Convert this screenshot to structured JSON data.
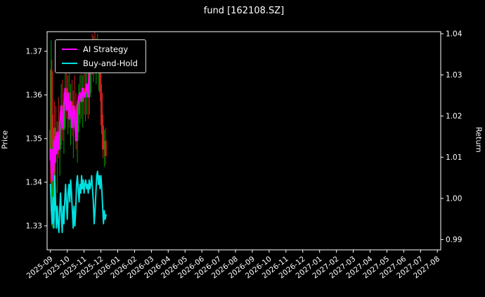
{
  "title": "fund [162108.SZ]",
  "axes": {
    "left_label": "Price",
    "right_label": "Return"
  },
  "legend": [
    {
      "label": "AI Strategy",
      "color": "#ff00ff"
    },
    {
      "label": "Buy-and-Hold",
      "color": "#00e0e0"
    }
  ],
  "colors": {
    "background": "#000000",
    "foreground": "#ffffff",
    "candle_up": "#00a000",
    "candle_down": "#cc1f1f"
  },
  "chart_data": {
    "type": "line",
    "subtype": "candlestick-with-overlay-lines",
    "title": "fund [162108.SZ]",
    "xlabel": "",
    "ylabel_left": "Price",
    "ylabel_right": "Return",
    "grid": false,
    "legend_position": "upper-left",
    "x_ticks": [
      "2025-09",
      "2025-10",
      "2025-11",
      "2025-12",
      "2026-01",
      "2026-02",
      "2026-03",
      "2026-04",
      "2026-05",
      "2026-06",
      "2026-07",
      "2026-08",
      "2026-09",
      "2026-10",
      "2026-11",
      "2026-12",
      "2027-01",
      "2027-02",
      "2027-03",
      "2027-04",
      "2027-05",
      "2027-06",
      "2027-07",
      "2027-08"
    ],
    "xlim_months": [
      -0.2,
      23.2
    ],
    "ylim_price": [
      1.3245,
      1.3745
    ],
    "ylim_return": [
      0.9875,
      1.0405
    ],
    "y_ticks_price": [
      1.33,
      1.34,
      1.35,
      1.36,
      1.37
    ],
    "y_ticks_return": [
      0.99,
      1.0,
      1.01,
      1.02,
      1.03,
      1.04
    ],
    "series": [
      {
        "name": "AI Strategy",
        "color": "#ff00ff",
        "width": 2.4,
        "axis": "price",
        "points": [
          [
            0.0,
            1.3475
          ],
          [
            0.05,
            1.3435
          ],
          [
            0.1,
            1.3405
          ],
          [
            0.14,
            1.3475
          ],
          [
            0.18,
            1.3425
          ],
          [
            0.22,
            1.3495
          ],
          [
            0.26,
            1.3445
          ],
          [
            0.3,
            1.3505
          ],
          [
            0.34,
            1.3465
          ],
          [
            0.4,
            1.3515
          ],
          [
            0.48,
            1.3475
          ],
          [
            0.56,
            1.3535
          ],
          [
            0.64,
            1.3575
          ],
          [
            0.72,
            1.3525
          ],
          [
            0.8,
            1.3575
          ],
          [
            0.88,
            1.3615
          ],
          [
            0.96,
            1.3565
          ],
          [
            1.04,
            1.3605
          ],
          [
            1.12,
            1.3545
          ],
          [
            1.2,
            1.3585
          ],
          [
            1.28,
            1.3525
          ],
          [
            1.36,
            1.3575
          ],
          [
            1.44,
            1.3555
          ],
          [
            1.52,
            1.3495
          ],
          [
            1.6,
            1.3575
          ],
          [
            1.68,
            1.3595
          ],
          [
            1.76,
            1.3605
          ],
          [
            1.84,
            1.3585
          ],
          [
            1.92,
            1.3615
          ],
          [
            2.0,
            1.3595
          ],
          [
            2.08,
            1.3605
          ],
          [
            2.16,
            1.3625
          ],
          [
            2.24,
            1.3595
          ],
          [
            2.32,
            1.3655
          ],
          [
            2.38,
            1.3685
          ],
          [
            2.44,
            1.3705
          ],
          [
            2.52,
            1.3695
          ],
          [
            2.6,
            1.3715
          ],
          [
            2.68,
            1.37
          ],
          [
            2.76,
            1.3715
          ],
          [
            2.84,
            1.3695
          ],
          [
            2.9,
            1.3705
          ],
          [
            2.95,
            1.371
          ]
        ]
      },
      {
        "name": "Buy-and-Hold",
        "color": "#00e0e0",
        "width": 2.0,
        "axis": "price",
        "points": [
          [
            0.0,
            1.3395
          ],
          [
            0.05,
            1.334
          ],
          [
            0.1,
            1.3305
          ],
          [
            0.15,
            1.3365
          ],
          [
            0.2,
            1.3295
          ],
          [
            0.25,
            1.3415
          ],
          [
            0.3,
            1.3355
          ],
          [
            0.35,
            1.3295
          ],
          [
            0.4,
            1.3345
          ],
          [
            0.45,
            1.3305
          ],
          [
            0.5,
            1.3285
          ],
          [
            0.55,
            1.3335
          ],
          [
            0.6,
            1.3375
          ],
          [
            0.65,
            1.3325
          ],
          [
            0.7,
            1.3285
          ],
          [
            0.75,
            1.3345
          ],
          [
            0.8,
            1.3305
          ],
          [
            0.85,
            1.3355
          ],
          [
            0.9,
            1.3395
          ],
          [
            0.95,
            1.3355
          ],
          [
            1.0,
            1.3315
          ],
          [
            1.05,
            1.3375
          ],
          [
            1.1,
            1.3395
          ],
          [
            1.15,
            1.3355
          ],
          [
            1.2,
            1.3405
          ],
          [
            1.25,
            1.3375
          ],
          [
            1.3,
            1.3335
          ],
          [
            1.35,
            1.3295
          ],
          [
            1.4,
            1.3345
          ],
          [
            1.45,
            1.33
          ],
          [
            1.5,
            1.3335
          ],
          [
            1.55,
            1.3395
          ],
          [
            1.6,
            1.3415
          ],
          [
            1.65,
            1.3385
          ],
          [
            1.7,
            1.3355
          ],
          [
            1.75,
            1.3395
          ],
          [
            1.8,
            1.3375
          ],
          [
            1.85,
            1.3415
          ],
          [
            1.9,
            1.3385
          ],
          [
            1.95,
            1.3405
          ],
          [
            2.0,
            1.3375
          ],
          [
            2.05,
            1.3395
          ],
          [
            2.1,
            1.3405
          ],
          [
            2.15,
            1.3385
          ],
          [
            2.2,
            1.3395
          ],
          [
            2.25,
            1.3375
          ],
          [
            2.3,
            1.3405
          ],
          [
            2.35,
            1.3385
          ],
          [
            2.4,
            1.3395
          ],
          [
            2.45,
            1.3415
          ],
          [
            2.5,
            1.3385
          ],
          [
            2.55,
            1.3355
          ],
          [
            2.6,
            1.3305
          ],
          [
            2.65,
            1.3335
          ],
          [
            2.7,
            1.3375
          ],
          [
            2.75,
            1.3415
          ],
          [
            2.8,
            1.3425
          ],
          [
            2.85,
            1.3395
          ],
          [
            2.9,
            1.3415
          ],
          [
            2.95,
            1.3385
          ],
          [
            3.0,
            1.3415
          ],
          [
            3.05,
            1.3385
          ],
          [
            3.1,
            1.3345
          ],
          [
            3.15,
            1.3305
          ],
          [
            3.2,
            1.3335
          ],
          [
            3.25,
            1.3315
          ],
          [
            3.3,
            1.3325
          ]
        ]
      }
    ],
    "candles": {
      "up_color": "#00a000",
      "down_color": "#cc1f1f",
      "ohlc": [
        [
          0.0,
          1.352,
          1.366,
          1.34,
          1.345
        ],
        [
          0.04,
          1.345,
          1.3725,
          1.3435,
          1.3655
        ],
        [
          0.08,
          1.3655,
          1.368,
          1.33,
          1.3335
        ],
        [
          0.12,
          1.3335,
          1.348,
          1.3295,
          1.3455
        ],
        [
          0.16,
          1.3455,
          1.3555,
          1.3385,
          1.341
        ],
        [
          0.2,
          1.341,
          1.3525,
          1.3365,
          1.35
        ],
        [
          0.24,
          1.35,
          1.3585,
          1.3415,
          1.3445
        ],
        [
          0.28,
          1.3445,
          1.3525,
          1.3335,
          1.3495
        ],
        [
          0.32,
          1.3495,
          1.3575,
          1.3445,
          1.3465
        ],
        [
          0.4,
          1.3465,
          1.354,
          1.3375,
          1.3515
        ],
        [
          0.48,
          1.3515,
          1.3595,
          1.3455,
          1.3475
        ],
        [
          0.56,
          1.3475,
          1.356,
          1.3415,
          1.3535
        ],
        [
          0.64,
          1.3535,
          1.3625,
          1.3485,
          1.3575
        ],
        [
          0.72,
          1.3575,
          1.3635,
          1.3495,
          1.352
        ],
        [
          0.8,
          1.352,
          1.3605,
          1.3465,
          1.3575
        ],
        [
          0.88,
          1.3575,
          1.3665,
          1.3525,
          1.3615
        ],
        [
          0.96,
          1.3615,
          1.3655,
          1.3545,
          1.3565
        ],
        [
          1.04,
          1.3565,
          1.3645,
          1.351,
          1.3605
        ],
        [
          1.12,
          1.3605,
          1.3655,
          1.3525,
          1.3545
        ],
        [
          1.2,
          1.3545,
          1.3625,
          1.3485,
          1.3585
        ],
        [
          1.28,
          1.3585,
          1.3635,
          1.3505,
          1.3525
        ],
        [
          1.36,
          1.3525,
          1.361,
          1.3455,
          1.3575
        ],
        [
          1.44,
          1.3575,
          1.3645,
          1.352,
          1.355
        ],
        [
          1.52,
          1.355,
          1.3605,
          1.3475,
          1.3495
        ],
        [
          1.6,
          1.3495,
          1.3585,
          1.3445,
          1.3555
        ],
        [
          1.68,
          1.3555,
          1.3625,
          1.3515,
          1.3595
        ],
        [
          1.76,
          1.3595,
          1.3645,
          1.3535,
          1.3605
        ],
        [
          1.84,
          1.3605,
          1.3655,
          1.3545,
          1.3585
        ],
        [
          1.92,
          1.3585,
          1.3645,
          1.3525,
          1.3615
        ],
        [
          2.0,
          1.3615,
          1.366,
          1.3555,
          1.3595
        ],
        [
          2.08,
          1.3595,
          1.365,
          1.354,
          1.3605
        ],
        [
          2.16,
          1.3605,
          1.3665,
          1.3555,
          1.3625
        ],
        [
          2.24,
          1.3625,
          1.367,
          1.3545,
          1.3595
        ],
        [
          2.32,
          1.3595,
          1.3685,
          1.3555,
          1.3655
        ],
        [
          2.4,
          1.3655,
          1.3725,
          1.3605,
          1.3705
        ],
        [
          2.48,
          1.3705,
          1.374,
          1.3645,
          1.3695
        ],
        [
          2.56,
          1.3695,
          1.3735,
          1.363,
          1.3715
        ],
        [
          2.64,
          1.3715,
          1.3745,
          1.3655,
          1.37
        ],
        [
          2.72,
          1.37,
          1.373,
          1.3625,
          1.3715
        ],
        [
          2.8,
          1.3715,
          1.374,
          1.366,
          1.3695
        ],
        [
          2.88,
          1.3695,
          1.3725,
          1.361,
          1.3705
        ],
        [
          2.96,
          1.3705,
          1.3715,
          1.3585,
          1.3605
        ],
        [
          3.04,
          1.3605,
          1.3625,
          1.351,
          1.353
        ],
        [
          3.12,
          1.353,
          1.3555,
          1.3455,
          1.3475
        ],
        [
          3.2,
          1.3475,
          1.352,
          1.3435,
          1.3495
        ],
        [
          3.28,
          1.3495,
          1.3525,
          1.344,
          1.346
        ]
      ]
    }
  }
}
